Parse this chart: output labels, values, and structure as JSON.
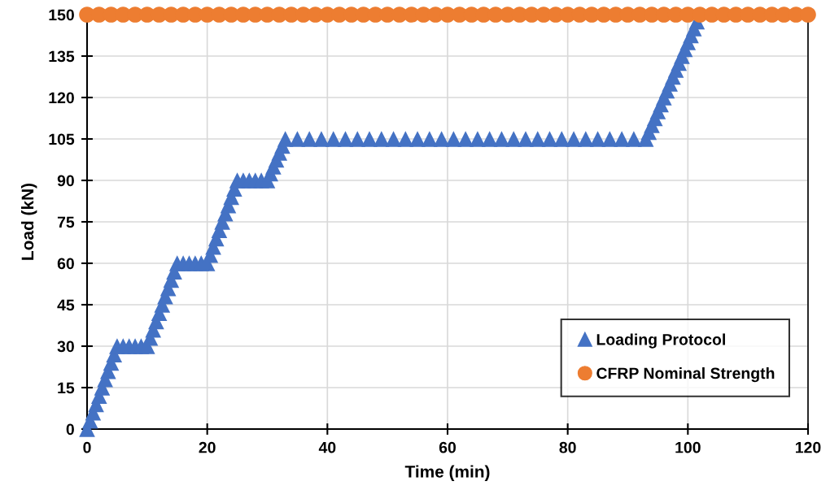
{
  "chart_data": {
    "type": "scatter",
    "xlabel": "Time (min)",
    "ylabel": "Load (kN)",
    "xlim": [
      0,
      120
    ],
    "xticks": [
      0,
      20,
      40,
      60,
      80,
      100,
      120
    ],
    "ylim": [
      0,
      150
    ],
    "yticks": [
      0,
      15,
      30,
      45,
      60,
      75,
      90,
      105,
      120,
      135,
      150
    ],
    "grid": true,
    "legend": "bottom right",
    "series": [
      {
        "name": "Loading Protocol",
        "color": "#4472c4",
        "marker": "triangle",
        "x": [
          0,
          0.5,
          1,
          1.5,
          2,
          2.5,
          3,
          3.5,
          4,
          4.5,
          5,
          6,
          7,
          8,
          9,
          10,
          10.5,
          11,
          11.5,
          12,
          12.5,
          13,
          13.5,
          14,
          14.5,
          15,
          16,
          17,
          18,
          19,
          20,
          20.5,
          21,
          21.5,
          22,
          22.5,
          23,
          23.5,
          24,
          24.5,
          25,
          26,
          27,
          28,
          29,
          30,
          30.5,
          31,
          31.5,
          32,
          32.5,
          33,
          35,
          37,
          39,
          41,
          43,
          45,
          47,
          49,
          51,
          53,
          55,
          57,
          59,
          61,
          63,
          65,
          67,
          69,
          71,
          73,
          75,
          77,
          79,
          81,
          83,
          85,
          87,
          89,
          91,
          93,
          93.5,
          94,
          94.5,
          95,
          95.5,
          96,
          96.5,
          97,
          97.5,
          98,
          98.5,
          99,
          99.5,
          100,
          100.5,
          101,
          101.5
        ],
        "values": [
          0,
          3,
          6,
          9,
          12,
          15,
          18,
          21,
          24,
          27,
          30,
          30,
          30,
          30,
          30,
          30,
          33,
          36,
          39,
          42,
          45,
          48,
          51,
          54,
          57,
          60,
          60,
          60,
          60,
          60,
          60,
          63,
          66,
          69,
          72,
          75,
          78,
          81,
          84,
          87,
          90,
          90,
          90,
          90,
          90,
          90,
          92.5,
          95,
          97.5,
          100,
          102.5,
          105,
          105,
          105,
          105,
          105,
          105,
          105,
          105,
          105,
          105,
          105,
          105,
          105,
          105,
          105,
          105,
          105,
          105,
          105,
          105,
          105,
          105,
          105,
          105,
          105,
          105,
          105,
          105,
          105,
          105,
          105,
          107.5,
          110,
          112.5,
          115,
          117.5,
          120,
          122.5,
          125,
          127.5,
          130,
          132.5,
          135,
          137.5,
          140,
          142.5,
          145,
          147.5
        ]
      },
      {
        "name": "CFRP Nominal Strength",
        "color": "#ed7d31",
        "marker": "circle",
        "x": [
          0,
          2,
          4,
          6,
          8,
          10,
          12,
          14,
          16,
          18,
          20,
          22,
          24,
          26,
          28,
          30,
          32,
          34,
          36,
          38,
          40,
          42,
          44,
          46,
          48,
          50,
          52,
          54,
          56,
          58,
          60,
          62,
          64,
          66,
          68,
          70,
          72,
          74,
          76,
          78,
          80,
          82,
          84,
          86,
          88,
          90,
          92,
          94,
          96,
          98,
          100,
          102,
          104,
          106,
          108,
          110,
          112,
          114,
          116,
          118,
          120
        ],
        "values": [
          150,
          150,
          150,
          150,
          150,
          150,
          150,
          150,
          150,
          150,
          150,
          150,
          150,
          150,
          150,
          150,
          150,
          150,
          150,
          150,
          150,
          150,
          150,
          150,
          150,
          150,
          150,
          150,
          150,
          150,
          150,
          150,
          150,
          150,
          150,
          150,
          150,
          150,
          150,
          150,
          150,
          150,
          150,
          150,
          150,
          150,
          150,
          150,
          150,
          150,
          150,
          150,
          150,
          150,
          150,
          150,
          150,
          150,
          150,
          150,
          150
        ]
      }
    ]
  }
}
